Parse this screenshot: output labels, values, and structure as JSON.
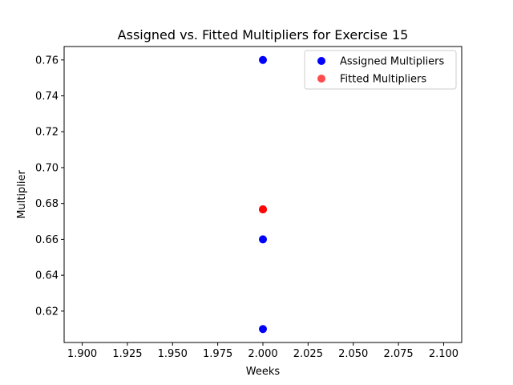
{
  "chart_data": {
    "type": "scatter",
    "title": "Assigned vs. Fitted Multipliers for Exercise 15",
    "xlabel": "Weeks",
    "ylabel": "Multiplier",
    "xlim": [
      1.89,
      2.11
    ],
    "ylim": [
      0.6025,
      0.7675
    ],
    "xticks": [
      1.9,
      1.925,
      1.95,
      1.975,
      2.0,
      2.025,
      2.05,
      2.075,
      2.1
    ],
    "xtick_labels": [
      "1.900",
      "1.925",
      "1.950",
      "1.975",
      "2.000",
      "2.025",
      "2.050",
      "2.075",
      "2.100"
    ],
    "yticks": [
      0.62,
      0.64,
      0.66,
      0.68,
      0.7,
      0.72,
      0.74,
      0.76
    ],
    "ytick_labels": [
      "0.62",
      "0.64",
      "0.66",
      "0.68",
      "0.70",
      "0.72",
      "0.74",
      "0.76"
    ],
    "grid": false,
    "legend_position": "top-right",
    "series": [
      {
        "name": "Assigned Multipliers",
        "color": "#0000ff",
        "opacity": 1,
        "points": [
          {
            "x": 2.0,
            "y": 0.76
          },
          {
            "x": 2.0,
            "y": 0.66
          },
          {
            "x": 2.0,
            "y": 0.61
          }
        ]
      },
      {
        "name": "Fitted Multipliers",
        "color": "#ff0000",
        "opacity": 0.7,
        "points": [
          {
            "x": 2.0,
            "y": 0.6767
          },
          {
            "x": 2.0,
            "y": 0.6767
          },
          {
            "x": 2.0,
            "y": 0.6767
          }
        ]
      }
    ]
  }
}
